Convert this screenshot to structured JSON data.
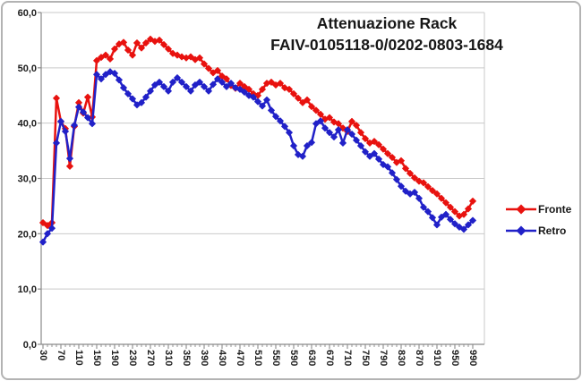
{
  "title": {
    "line1": "Attenuazione Rack",
    "line2": "FAIV-0105118-0/0202-0803-1684"
  },
  "legend": {
    "items": [
      {
        "label": "Fronte",
        "color": "#e8120f",
        "marker": "diamond"
      },
      {
        "label": "Retro",
        "color": "#2121c8",
        "marker": "diamond"
      }
    ]
  },
  "colors": {
    "fronte": "#e8120f",
    "retro": "#2121c8",
    "gridline": "#c9c9c9",
    "axis": "#8a8a8a",
    "text": "#1c1c1c",
    "border": "#b3b3b3",
    "background": "#ffffff"
  },
  "chart_data": {
    "type": "line",
    "title": "Attenuazione Rack FAIV-0105118-0/0202-0803-1684",
    "xlabel": "",
    "ylabel": "",
    "xlim": [
      30,
      990
    ],
    "ylim": [
      0,
      60
    ],
    "grid": true,
    "legend_position": "right",
    "marker": "diamond",
    "decimal_separator": ",",
    "y_ticks": [
      {
        "v": 60,
        "label": "60,0"
      },
      {
        "v": 50,
        "label": "50,0"
      },
      {
        "v": 40,
        "label": "40,0"
      },
      {
        "v": 30,
        "label": "30,0"
      },
      {
        "v": 20,
        "label": "20,0"
      },
      {
        "v": 10,
        "label": "10,0"
      },
      {
        "v": 0,
        "label": "0,0"
      }
    ],
    "x_ticks": [
      {
        "v": 30,
        "label": "30"
      },
      {
        "v": 70,
        "label": "70"
      },
      {
        "v": 110,
        "label": "110"
      },
      {
        "v": 150,
        "label": "150"
      },
      {
        "v": 190,
        "label": "190"
      },
      {
        "v": 230,
        "label": "230"
      },
      {
        "v": 270,
        "label": "270"
      },
      {
        "v": 310,
        "label": "310"
      },
      {
        "v": 350,
        "label": "350"
      },
      {
        "v": 390,
        "label": "390"
      },
      {
        "v": 430,
        "label": "430"
      },
      {
        "v": 470,
        "label": "470"
      },
      {
        "v": 510,
        "label": "510"
      },
      {
        "v": 550,
        "label": "550"
      },
      {
        "v": 590,
        "label": "590"
      },
      {
        "v": 630,
        "label": "630"
      },
      {
        "v": 670,
        "label": "670"
      },
      {
        "v": 710,
        "label": "710"
      },
      {
        "v": 750,
        "label": "750"
      },
      {
        "v": 790,
        "label": "790"
      },
      {
        "v": 830,
        "label": "830"
      },
      {
        "v": 870,
        "label": "870"
      },
      {
        "v": 910,
        "label": "910"
      },
      {
        "v": 950,
        "label": "950"
      },
      {
        "v": 990,
        "label": "990"
      }
    ],
    "x": [
      30,
      40,
      50,
      60,
      70,
      80,
      90,
      100,
      110,
      120,
      130,
      140,
      150,
      160,
      170,
      180,
      190,
      200,
      210,
      220,
      230,
      240,
      250,
      260,
      270,
      280,
      290,
      300,
      310,
      320,
      330,
      340,
      350,
      360,
      370,
      380,
      390,
      400,
      410,
      420,
      430,
      440,
      450,
      460,
      470,
      480,
      490,
      500,
      510,
      520,
      530,
      540,
      550,
      560,
      570,
      580,
      590,
      600,
      610,
      620,
      630,
      640,
      650,
      660,
      670,
      680,
      690,
      700,
      710,
      720,
      730,
      740,
      750,
      760,
      770,
      780,
      790,
      800,
      810,
      820,
      830,
      840,
      850,
      860,
      870,
      880,
      890,
      900,
      910,
      920,
      930,
      940,
      950,
      960,
      970,
      980,
      990
    ],
    "series": [
      {
        "name": "Fronte",
        "color": "#e8120f",
        "values": [
          22.0,
          21.5,
          22.0,
          44.5,
          40.3,
          39.0,
          32.2,
          39.4,
          43.7,
          41.8,
          44.7,
          41.1,
          51.3,
          51.9,
          52.3,
          51.6,
          53.4,
          54.3,
          54.6,
          53.2,
          52.3,
          54.5,
          53.6,
          54.5,
          55.2,
          54.8,
          55.0,
          54.2,
          53.4,
          52.6,
          52.3,
          52.0,
          51.8,
          52.0,
          51.5,
          51.8,
          50.7,
          49.9,
          49.1,
          49.5,
          48.5,
          48.0,
          46.8,
          46.3,
          47.2,
          46.6,
          46.1,
          45.3,
          45.0,
          46.1,
          47.2,
          47.4,
          46.9,
          47.2,
          46.4,
          46.1,
          45.3,
          44.5,
          43.7,
          44.2,
          43.0,
          42.3,
          41.6,
          40.7,
          41.0,
          40.2,
          39.9,
          39.1,
          38.5,
          40.3,
          39.6,
          38.3,
          37.2,
          36.4,
          36.7,
          36.1,
          35.3,
          34.5,
          33.8,
          32.9,
          33.2,
          31.8,
          30.9,
          30.1,
          29.5,
          29.2,
          28.5,
          27.8,
          27.2,
          26.4,
          25.6,
          24.8,
          24.0,
          23.2,
          23.5,
          24.5,
          25.9
        ]
      },
      {
        "name": "Retro",
        "color": "#2121c8",
        "values": [
          18.5,
          20.0,
          21.0,
          36.4,
          40.3,
          38.5,
          33.6,
          39.6,
          42.9,
          42.0,
          41.0,
          39.9,
          48.8,
          48.0,
          48.8,
          49.3,
          49.0,
          47.8,
          46.4,
          45.3,
          44.4,
          43.3,
          43.7,
          44.7,
          45.8,
          46.9,
          47.4,
          46.6,
          45.8,
          47.4,
          48.2,
          47.4,
          46.6,
          45.8,
          46.9,
          47.4,
          46.6,
          45.8,
          47.0,
          48.0,
          47.4,
          46.6,
          47.2,
          46.4,
          46.1,
          45.6,
          45.0,
          44.7,
          43.9,
          43.1,
          44.2,
          42.3,
          41.2,
          40.4,
          39.4,
          38.3,
          35.9,
          34.3,
          34.0,
          35.9,
          36.5,
          39.9,
          40.4,
          39.1,
          38.3,
          37.5,
          38.8,
          36.4,
          38.8,
          38.0,
          36.9,
          35.9,
          34.8,
          34.0,
          34.5,
          33.5,
          32.5,
          32.1,
          31.0,
          29.8,
          28.6,
          27.7,
          27.2,
          27.5,
          26.4,
          24.8,
          24.0,
          22.9,
          21.6,
          23.0,
          23.5,
          22.6,
          21.8,
          21.2,
          20.8,
          21.6,
          22.4
        ]
      }
    ]
  }
}
